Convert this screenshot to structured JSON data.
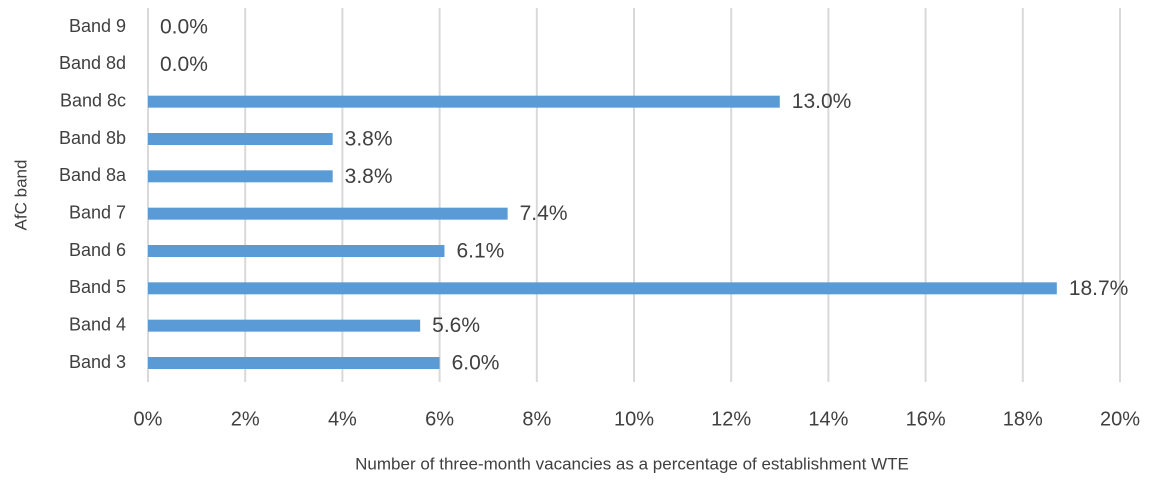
{
  "chart_data": {
    "type": "hbar",
    "xlabel": "Number of three-month vacancies as a percentage of establishment WTE",
    "ylabel": "AfC band",
    "categories": [
      "Band 9",
      "Band 8d",
      "Band 8c",
      "Band 8b",
      "Band 8a",
      "Band 7",
      "Band 6",
      "Band 5",
      "Band 4",
      "Band 3"
    ],
    "values": [
      0,
      0,
      13.0,
      3.8,
      3.8,
      7.4,
      6.1,
      18.7,
      5.6,
      6.0
    ],
    "value_labels": [
      "0.0%",
      "0.0%",
      "13.0%",
      "3.8%",
      "3.8%",
      "7.4%",
      "6.1%",
      "18.7%",
      "5.6%",
      "6.0%"
    ],
    "color": "#5b9bd5",
    "xlim": [
      0,
      20
    ],
    "xticks": [
      {
        "value": 0,
        "label": "0%"
      },
      {
        "value": 2,
        "label": "2%"
      },
      {
        "value": 4,
        "label": "4%"
      },
      {
        "value": 6,
        "label": "6%"
      },
      {
        "value": 8,
        "label": "8%"
      },
      {
        "value": 10,
        "label": "10%"
      },
      {
        "value": 12,
        "label": "12%"
      },
      {
        "value": 14,
        "label": "14%"
      },
      {
        "value": 16,
        "label": "16%"
      },
      {
        "value": 18,
        "label": "18%"
      },
      {
        "value": 20,
        "label": "20%"
      }
    ],
    "grid": true
  }
}
